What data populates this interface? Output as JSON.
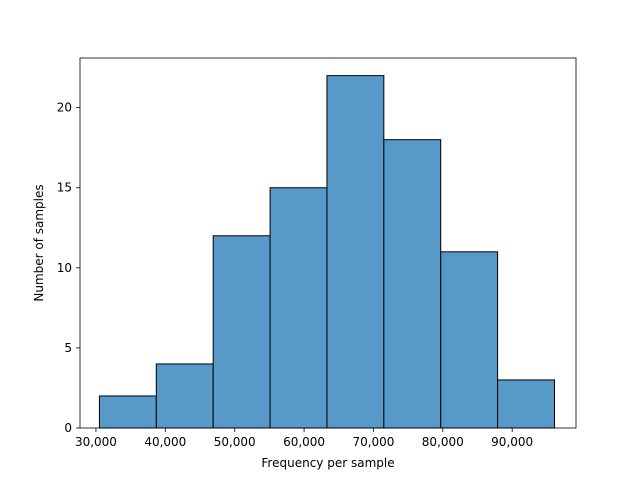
{
  "chart_data": {
    "type": "bar",
    "subtype": "histogram",
    "xlabel": "Frequency per sample",
    "ylabel": "Number of samples",
    "xlim": [
      27700,
      99200
    ],
    "ylim": [
      0,
      23.1
    ],
    "bin_edges": [
      30500,
      38700,
      46900,
      55100,
      63300,
      71500,
      79700,
      87900,
      96100
    ],
    "counts": [
      2,
      4,
      12,
      15,
      22,
      18,
      11,
      3
    ],
    "x_ticks": [
      30000,
      40000,
      50000,
      60000,
      70000,
      80000,
      90000
    ],
    "x_tick_labels": [
      "30,000",
      "40,000",
      "50,000",
      "60,000",
      "70,000",
      "80,000",
      "90,000"
    ],
    "y_ticks": [
      0,
      5,
      10,
      15,
      20
    ],
    "y_tick_labels": [
      "0",
      "5",
      "10",
      "15",
      "20"
    ],
    "bar_color": "#5799c8",
    "edge_color": "#000000",
    "grid": false,
    "legend": "none"
  }
}
